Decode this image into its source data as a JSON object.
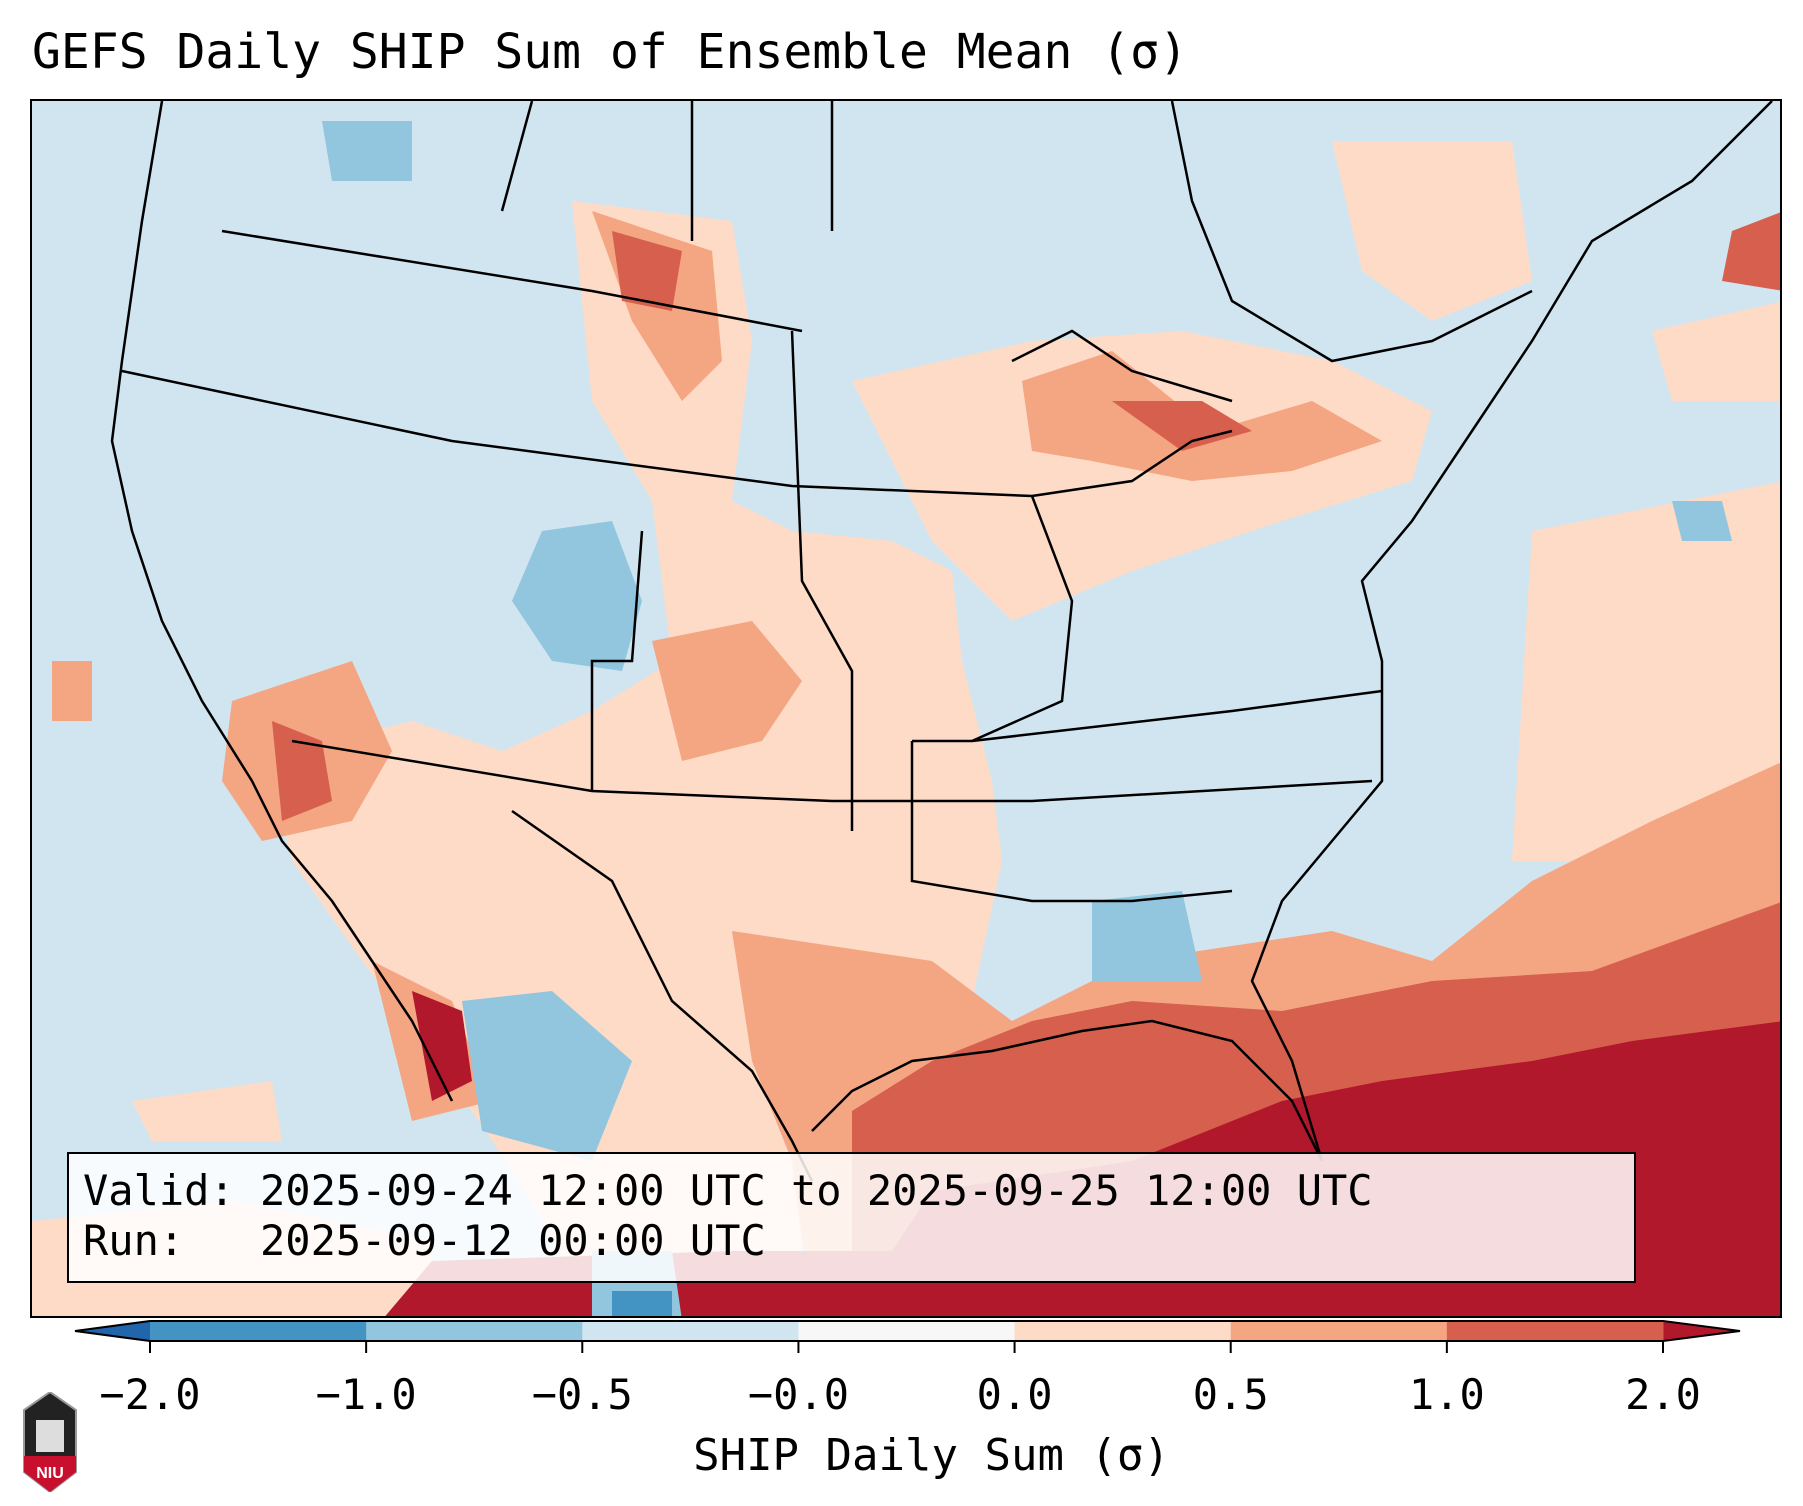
{
  "title": "GEFS Daily SHIP Sum of Ensemble Mean (σ)",
  "info": {
    "valid": "Valid: 2025-09-24 12:00 UTC to 2025-09-25 12:00 UTC",
    "run": "Run:   2025-09-12 00:00 UTC"
  },
  "colorbar": {
    "label": "SHIP Daily Sum (σ)",
    "ticks": [
      "−2.0",
      "−1.0",
      "−0.5",
      "−0.0",
      "0.0",
      "0.5",
      "1.0",
      "2.0"
    ],
    "bin_colors": [
      "#4393c3",
      "#92c5de",
      "#d1e5f0",
      "#f7f7f7",
      "#fddbc7",
      "#f4a582",
      "#d6604d"
    ],
    "under_color": "#2166ac",
    "over_color": "#b2182b"
  },
  "logo": {
    "text": "NIU"
  }
}
